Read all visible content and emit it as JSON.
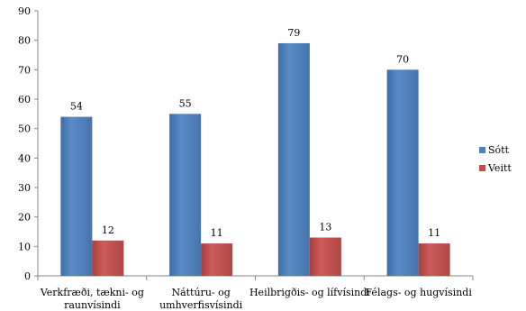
{
  "chart_data": {
    "type": "bar",
    "title": "",
    "xlabel": "",
    "ylabel": "",
    "categories": [
      [
        "Verkfræði, tækni- og",
        "raunvísindi"
      ],
      [
        "Náttúru- og",
        "umhverfisvísindi"
      ],
      [
        "Heilbrigðis- og lífvísindi"
      ],
      [
        "Félags- og hugvísindi"
      ]
    ],
    "series": [
      {
        "name": "Sótt",
        "values": [
          54,
          55,
          79,
          70
        ],
        "color": "#4F81BD"
      },
      {
        "name": "Veitt",
        "values": [
          12,
          11,
          13,
          11
        ],
        "color": "#C0504D"
      }
    ],
    "ylim": [
      0,
      90
    ],
    "yticks": [
      0,
      10,
      20,
      30,
      40,
      50,
      60,
      70,
      80,
      90
    ],
    "grid": false,
    "legend_position": "right"
  }
}
